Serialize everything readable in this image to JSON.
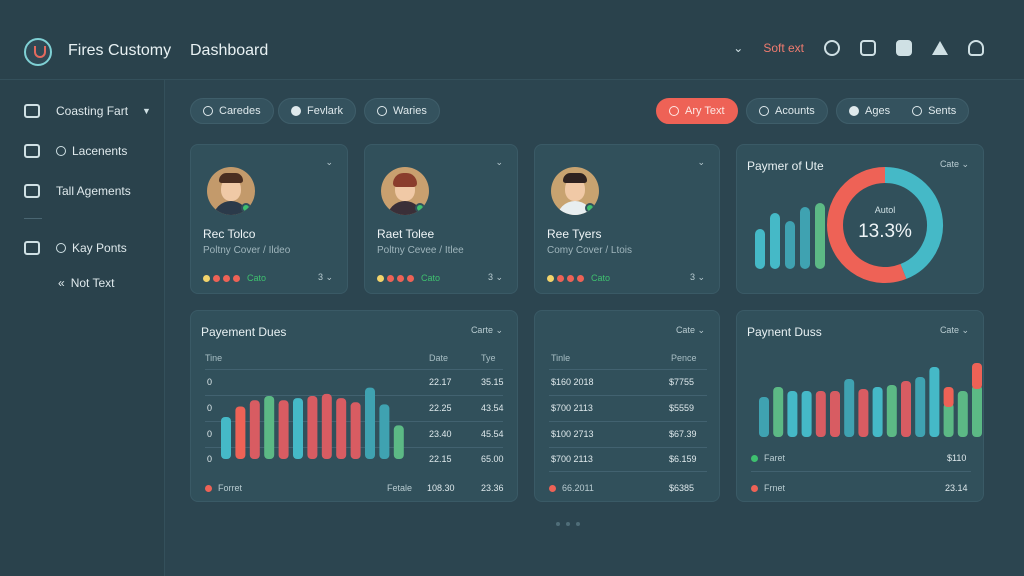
{
  "header": {
    "app_title": "Fires Customy",
    "page_title": "Dashboard",
    "top_link": "Soft ext",
    "icons": [
      "chevron-down-icon",
      "headset-icon",
      "alert-icon",
      "info-icon",
      "bell-icon",
      "user-icon"
    ]
  },
  "sidebar": {
    "items": [
      {
        "label": "Coasting Fart",
        "icon": "document-icon"
      },
      {
        "label": "Lacenents",
        "icon": "clock-icon"
      },
      {
        "label": "Tall Agements",
        "icon": "folder-icon"
      },
      {
        "label": "Kay Ponts",
        "icon": "tag-icon"
      },
      {
        "label": "Not Text",
        "icon": "chevrons-left-icon"
      }
    ]
  },
  "filters": {
    "left": [
      {
        "label": "Caredes",
        "icon": "people-icon"
      },
      {
        "label": "Fevlark",
        "icon": "play-icon"
      },
      {
        "label": "Waries",
        "icon": "search-icon"
      }
    ],
    "right": [
      {
        "label": "Ary Text",
        "icon": "pen-icon"
      },
      {
        "label": "Acounts",
        "icon": "accounts-icon"
      },
      {
        "label": "Ages",
        "icon": "globe-icon"
      },
      {
        "label": "Sents",
        "icon": "phone-icon"
      }
    ]
  },
  "profiles": [
    {
      "name": "Rec Tolco",
      "role": "Poltny Cover / Ildeo",
      "status": "Cato",
      "count": "3",
      "status_colors": [
        "#f3d36b",
        "#ee6256",
        "#ee6256",
        "#ee6256"
      ],
      "hair": "#4a2e21",
      "bg": "#c39a6b"
    },
    {
      "name": "Raet Tolee",
      "role": "Poltny Cevee / Itlee",
      "status": "Cato",
      "count": "3",
      "status_colors": [
        "#f3d36b",
        "#ee6256",
        "#ee6256",
        "#ee6256"
      ],
      "hair": "#8a3d2c",
      "bg": "#c9a06f"
    },
    {
      "name": "Ree Tyers",
      "role": "Comy Cover / Ltois",
      "status": "Cato",
      "count": "3",
      "status_colors": [
        "#f3d36b",
        "#ee6256",
        "#ee6256",
        "#ee6256"
      ],
      "hair": "#2e2220",
      "bg": "#c8a370"
    }
  ],
  "donut_card": {
    "title": "Paymer of Ute",
    "control": "Cate",
    "center_label": "Autol",
    "center_value": "13.3%",
    "colors": {
      "teal": "#45b9c7",
      "red": "#ee6256",
      "green": "#5cb985"
    },
    "chart_data": {
      "type": "pie",
      "slices": [
        {
          "value": 44,
          "color": "#45b9c7"
        },
        {
          "value": 56,
          "color": "#ee6256"
        }
      ]
    },
    "mini_bars": {
      "type": "bar",
      "values": [
        40,
        56,
        48,
        62,
        66
      ],
      "colors": [
        "#45b9c7",
        "#45b9c7",
        "#3fa2b1",
        "#3fa2b1",
        "#5cb985"
      ]
    }
  },
  "payment_card_1": {
    "title": "Payement Dues",
    "control": "Carte",
    "headers": [
      "Tine",
      "Date",
      "Tye"
    ],
    "rows": [
      {
        "t": "0",
        "date": "22.17",
        "tye": "35.15"
      },
      {
        "t": "0",
        "date": "22.25",
        "tye": "43.54"
      },
      {
        "t": "0",
        "date": "23.40",
        "tye": "45.54"
      },
      {
        "t": "0",
        "date": "22.15",
        "tye": "65.00"
      }
    ],
    "legend": "Forret",
    "footer_label": "Fetale",
    "footer_v1": "108.30",
    "footer_v2": "23.36",
    "chart_data": {
      "type": "bar",
      "values": [
        40,
        50,
        56,
        60,
        56,
        58,
        60,
        62,
        58,
        54,
        68,
        52,
        32
      ],
      "colors": [
        "#45b9c7",
        "#ee6256",
        "#d85c62",
        "#5cb985",
        "#d85c62",
        "#45b9c7",
        "#d85c62",
        "#d85c62",
        "#d85c62",
        "#d85c62",
        "#3fa2b1",
        "#3fa2b1",
        "#5cb985"
      ]
    }
  },
  "payment_card_2": {
    "control": "Cate",
    "headers": [
      "Tinle",
      "Pence"
    ],
    "rows": [
      {
        "a": "$160 2018",
        "b": "$7755"
      },
      {
        "a": "$700 2113",
        "b": "$5559"
      },
      {
        "a": "$100 2713",
        "b": "$67.39"
      },
      {
        "a": "$700 2113",
        "b": "$6.159"
      }
    ],
    "legend": "66.2011",
    "footer_v": "$6385"
  },
  "payment_card_3": {
    "title": "Paynent Duss",
    "control": "Cate",
    "legend_1": "Faret",
    "legend_1_value": "$110",
    "legend_2": "Frnet",
    "legend_2_value": "23.14",
    "chart_data": {
      "type": "bar",
      "series": [
        {
          "name": "",
          "values": [
            40,
            50,
            46,
            46,
            46,
            46,
            58,
            48,
            50,
            52,
            56,
            60,
            70,
            34,
            46,
            52
          ]
        },
        {
          "name": "",
          "values": [
            0,
            0,
            0,
            0,
            0,
            0,
            0,
            0,
            0,
            0,
            0,
            0,
            0,
            16,
            0,
            22
          ]
        }
      ],
      "colors": [
        "#3fa2b1",
        "#5cb985",
        "#45b9c7",
        "#45b9c7",
        "#d85c62",
        "#d85c62",
        "#3fa2b1",
        "#d85c62",
        "#45b9c7",
        "#5cb985",
        "#d85c62",
        "#3fa2b1",
        "#45b9c7",
        "#5cb985",
        "#5cb985",
        "#5cb985"
      ],
      "stack_colors": [
        "#ee6256",
        "#ee6256"
      ]
    }
  }
}
